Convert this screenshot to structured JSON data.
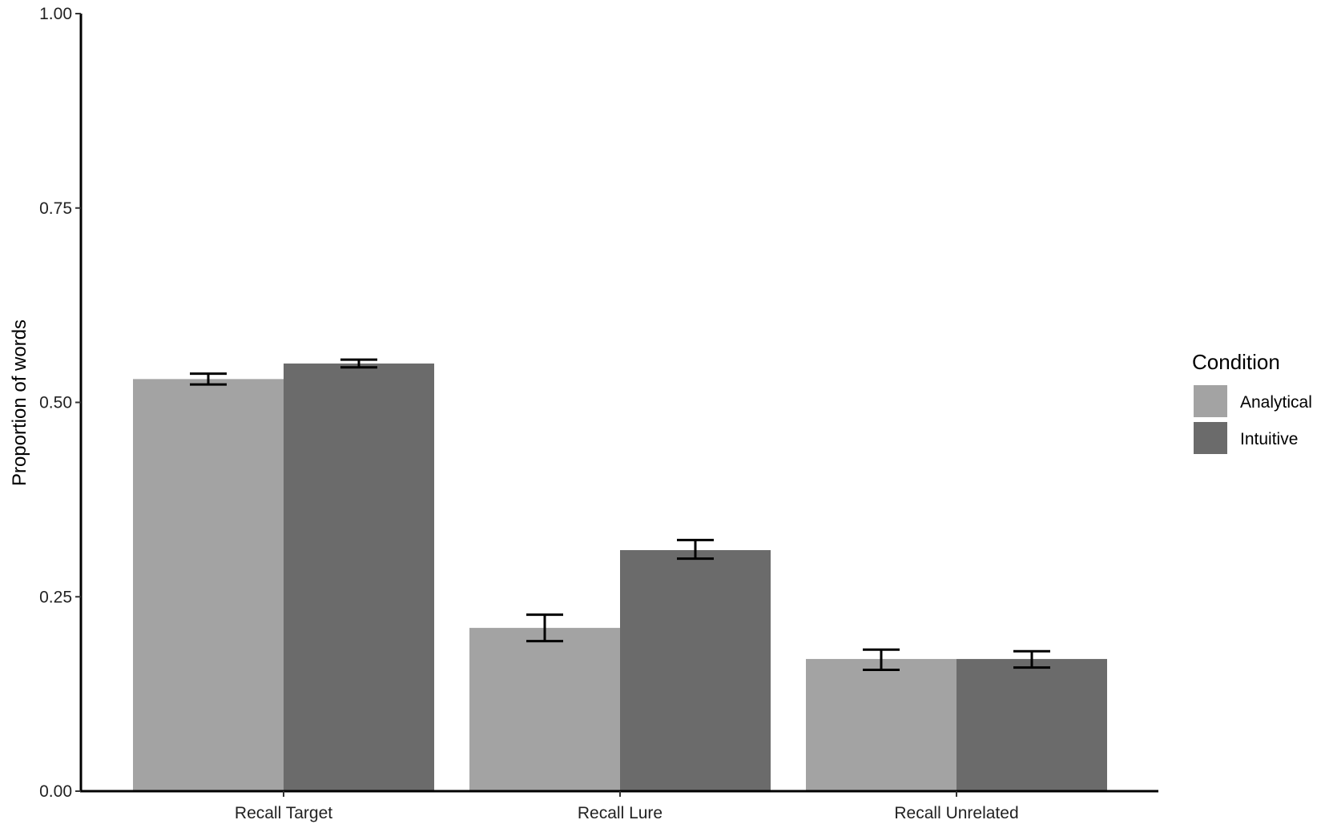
{
  "chart_data": {
    "type": "bar",
    "title": "",
    "xlabel": "",
    "ylabel": "Proportion of words",
    "ylim": [
      0,
      1
    ],
    "yticks": [
      "0.00",
      "0.25",
      "0.50",
      "0.75",
      "1.00"
    ],
    "grid": false,
    "legend_position": "right",
    "legend_title": "Condition",
    "categories": [
      "Recall Target",
      "Recall Lure",
      "Recall Unrelated"
    ],
    "series": [
      {
        "name": "Analytical",
        "color": "#a3a3a3",
        "values": [
          0.53,
          0.21,
          0.17
        ],
        "error_low": [
          0.523,
          0.193,
          0.156
        ],
        "error_high": [
          0.537,
          0.227,
          0.182
        ]
      },
      {
        "name": "Intuitive",
        "color": "#6b6b6b",
        "values": [
          0.55,
          0.31,
          0.17
        ],
        "error_low": [
          0.545,
          0.299,
          0.159
        ],
        "error_high": [
          0.555,
          0.323,
          0.18
        ]
      }
    ]
  }
}
